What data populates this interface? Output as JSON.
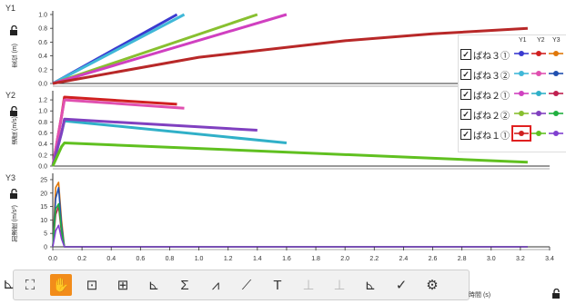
{
  "panels": [
    {
      "id": "Y1",
      "axis_label": "変位 (m)",
      "ticks": [
        "1.0",
        "0.8",
        "0.6",
        "0.4",
        "0.2",
        "0.0"
      ]
    },
    {
      "id": "Y2",
      "axis_label": "速度 (m/s)",
      "ticks": [
        "1.2",
        "1.0",
        "0.8",
        "0.6",
        "0.4",
        "0.2",
        "0.0"
      ]
    },
    {
      "id": "Y3",
      "axis_label": "加速度 (m/s²)",
      "ticks": [
        "25",
        "20",
        "15",
        "10",
        "5",
        "0"
      ]
    }
  ],
  "x_ticks": [
    "0.0",
    "0.2",
    "0.4",
    "0.6",
    "0.8",
    "1.0",
    "1.2",
    "1.4",
    "1.6",
    "1.8",
    "2.0",
    "2.2",
    "2.4",
    "2.6",
    "2.8",
    "3.0",
    "3.2",
    "3.4"
  ],
  "x_axis_label": "時間 (s)",
  "legend": {
    "col_headers": [
      "Y1",
      "Y2",
      "Y3"
    ],
    "items": [
      {
        "label": "ばね３①",
        "checked": "✓",
        "colors": [
          "#3a3ad0",
          "#d02020",
          "#e0780a"
        ]
      },
      {
        "label": "ばね３②",
        "checked": "✓",
        "colors": [
          "#40b8d8",
          "#e050b0",
          "#2050b0"
        ]
      },
      {
        "label": "ばね２①",
        "checked": "✓",
        "colors": [
          "#d040c0",
          "#30b0c8",
          "#c02050"
        ]
      },
      {
        "label": "ばね２②",
        "checked": "✓",
        "colors": [
          "#88c030",
          "#8040c0",
          "#20b040"
        ]
      },
      {
        "label": "ばね１①",
        "checked": "✓",
        "colors": [
          "#d02020",
          "#60c020",
          "#8040d0"
        ]
      }
    ]
  },
  "chart_data": [
    {
      "type": "line",
      "title": "",
      "ylabel": "変位 (m)",
      "ylim": [
        0,
        1.0
      ],
      "xlim": [
        0,
        3.4
      ],
      "series": [
        {
          "name": "ばね３①",
          "color": "#3a3ad0",
          "x": [
            0,
            0.85
          ],
          "y": [
            0,
            1.0
          ]
        },
        {
          "name": "ばね３②",
          "color": "#40b8d8",
          "x": [
            0,
            0.9
          ],
          "y": [
            0,
            1.0
          ]
        },
        {
          "name": "ばね２②",
          "color": "#88c030",
          "x": [
            0,
            1.4
          ],
          "y": [
            0,
            1.0
          ]
        },
        {
          "name": "ばね２①",
          "color": "#d040c0",
          "x": [
            0,
            1.6
          ],
          "y": [
            0,
            1.0
          ]
        },
        {
          "name": "ばね１①",
          "color": "#b82828",
          "x": [
            0,
            1.0,
            2.0,
            2.6,
            3.25
          ],
          "y": [
            0,
            0.38,
            0.62,
            0.72,
            0.8
          ]
        }
      ]
    },
    {
      "type": "line",
      "title": "",
      "ylabel": "速度 (m/s)",
      "ylim": [
        0,
        1.3
      ],
      "xlim": [
        0,
        3.4
      ],
      "series": [
        {
          "name": "ばね３①",
          "color": "#d02020",
          "x": [
            0,
            0.06,
            0.08,
            0.85
          ],
          "y": [
            0,
            0.9,
            1.25,
            1.12
          ]
        },
        {
          "name": "ばね３②",
          "color": "#e050b0",
          "x": [
            0,
            0.06,
            0.08,
            0.9
          ],
          "y": [
            0,
            0.9,
            1.2,
            1.05
          ]
        },
        {
          "name": "ばね２①",
          "color": "#30b0c8",
          "x": [
            0,
            0.06,
            0.08,
            1.6
          ],
          "y": [
            0,
            0.6,
            0.82,
            0.42
          ]
        },
        {
          "name": "ばね２②",
          "color": "#8040c0",
          "x": [
            0,
            0.06,
            0.08,
            1.4
          ],
          "y": [
            0,
            0.6,
            0.85,
            0.65
          ]
        },
        {
          "name": "ばね１①",
          "color": "#60c020",
          "x": [
            0,
            0.06,
            0.08,
            3.25
          ],
          "y": [
            0,
            0.35,
            0.42,
            0.07
          ]
        }
      ]
    },
    {
      "type": "line",
      "title": "",
      "ylabel": "加速度 (m/s²)",
      "ylim": [
        0,
        26
      ],
      "xlim": [
        0,
        3.4
      ],
      "series": [
        {
          "name": "ばね３①",
          "color": "#e0780a",
          "x": [
            0,
            0.02,
            0.04,
            0.06,
            0.08,
            3.25
          ],
          "y": [
            0,
            22,
            24,
            10,
            0,
            0
          ]
        },
        {
          "name": "ばね３②",
          "color": "#2050b0",
          "x": [
            0,
            0.02,
            0.04,
            0.06,
            0.08,
            3.25
          ],
          "y": [
            0,
            18,
            22,
            8,
            0,
            0
          ]
        },
        {
          "name": "ばね２①",
          "color": "#c02050",
          "x": [
            0,
            0.02,
            0.04,
            0.06,
            0.08,
            3.25
          ],
          "y": [
            0,
            12,
            15,
            5,
            0,
            0
          ]
        },
        {
          "name": "ばね２②",
          "color": "#20b040",
          "x": [
            0,
            0.02,
            0.04,
            0.06,
            0.08,
            3.25
          ],
          "y": [
            0,
            14,
            16,
            6,
            0,
            0
          ]
        },
        {
          "name": "ばね１①",
          "color": "#8040d0",
          "x": [
            0,
            0.02,
            0.04,
            0.06,
            0.08,
            3.25
          ],
          "y": [
            0,
            6,
            8,
            3,
            0,
            0
          ]
        }
      ]
    }
  ],
  "toolbar": {
    "items": [
      {
        "name": "fullscreen-icon",
        "glyph": "⛶"
      },
      {
        "name": "hand-tool-icon",
        "glyph": "✋"
      },
      {
        "name": "zoom-box-icon",
        "glyph": "⊡"
      },
      {
        "name": "zoom-fit-icon",
        "glyph": "⊞"
      },
      {
        "name": "axis-icon",
        "glyph": "⊾"
      },
      {
        "name": "sum-icon",
        "glyph": "Σ"
      },
      {
        "name": "tangent-icon",
        "glyph": "⩘"
      },
      {
        "name": "curve-fit-icon",
        "glyph": "⟋"
      },
      {
        "name": "text-tool-icon",
        "glyph": "T"
      },
      {
        "name": "delta-icon",
        "glyph": "⊥"
      },
      {
        "name": "area-icon",
        "glyph": "⊥"
      },
      {
        "name": "step-icon",
        "glyph": "⊾"
      },
      {
        "name": "check-icon",
        "glyph": "✓"
      },
      {
        "name": "gear-icon",
        "glyph": "⚙"
      }
    ]
  }
}
